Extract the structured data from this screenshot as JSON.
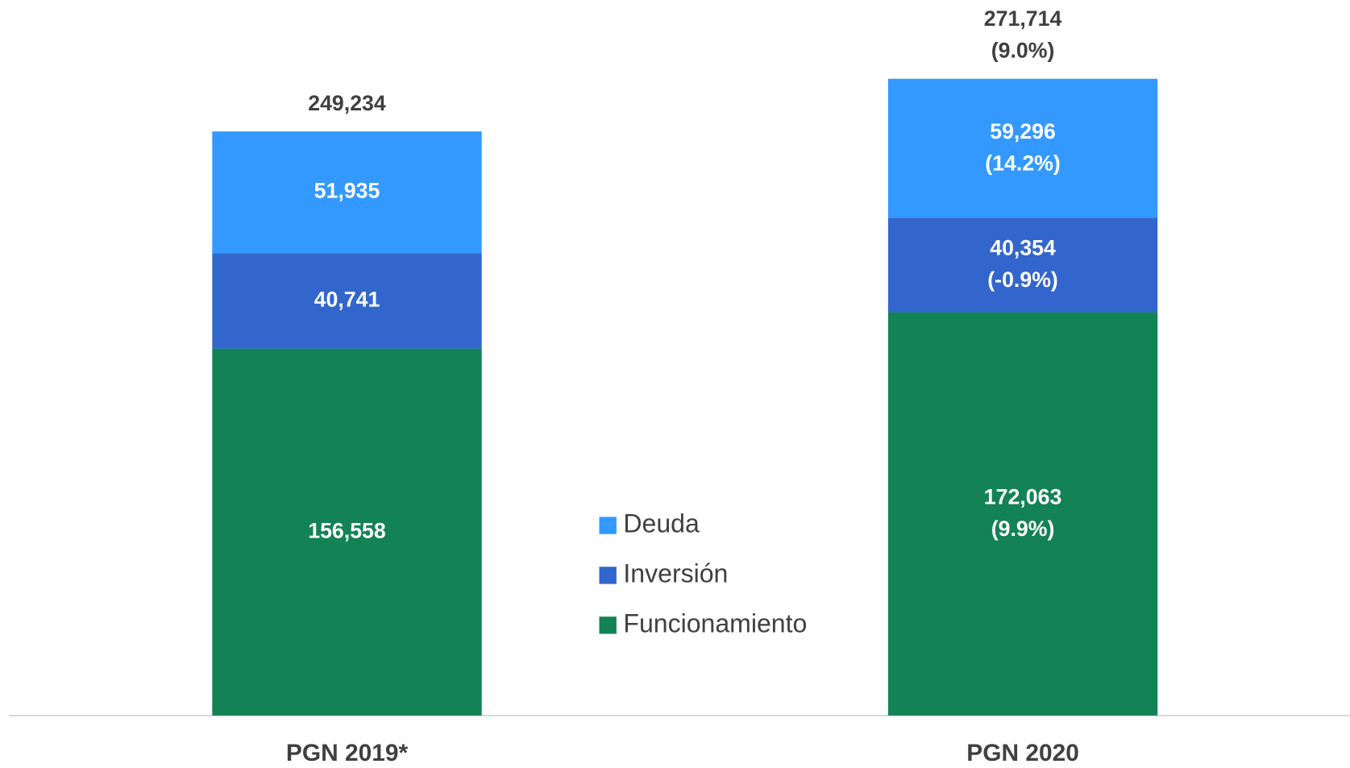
{
  "chart_data": {
    "type": "stacked_bar",
    "categories": [
      "PGN 2019*",
      "PGN 2020"
    ],
    "ylim": [
      0,
      280000
    ],
    "series": [
      {
        "name": "Funcionamiento",
        "color": "#138255",
        "values": [
          156558,
          172063
        ],
        "value_labels": [
          "156,558",
          "172,063"
        ],
        "change_labels": [
          null,
          "(9.9%)"
        ]
      },
      {
        "name": "Inversión",
        "color": "#3366cc",
        "values": [
          40741,
          40354
        ],
        "value_labels": [
          "40,741",
          "40,354"
        ],
        "change_labels": [
          null,
          "(-0.9%)"
        ]
      },
      {
        "name": "Deuda",
        "color": "#3399ff",
        "values": [
          51935,
          59296
        ],
        "value_labels": [
          "51,935",
          "59,296"
        ],
        "change_labels": [
          null,
          "(14.2%)"
        ]
      }
    ],
    "totals": {
      "values": [
        249234,
        271714
      ],
      "value_labels": [
        "249,234",
        "271,714"
      ],
      "change_labels": [
        null,
        "(9.0%)"
      ]
    }
  }
}
